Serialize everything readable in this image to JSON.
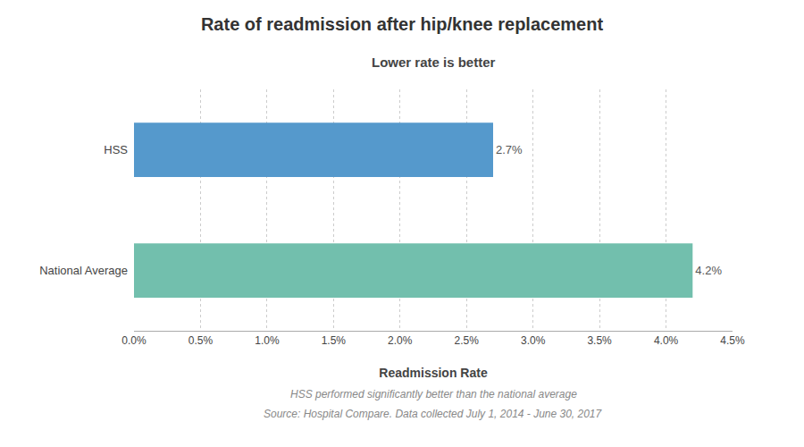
{
  "chart_data": {
    "type": "bar",
    "orientation": "horizontal",
    "title": "Rate of readmission after hip/knee replacement",
    "subtitle": "Lower rate is better",
    "categories": [
      "National Average",
      "HSS"
    ],
    "values": [
      0.042,
      0.027
    ],
    "value_labels": [
      "4.2%",
      "2.7%"
    ],
    "data_labels": true,
    "colors": [
      "#72bfad",
      "#5599cc"
    ],
    "xlabel": "Readmission Rate",
    "xlim": [
      0,
      0.045
    ],
    "xticks": [
      {
        "value": 0.0,
        "label": "0.0%"
      },
      {
        "value": 0.005,
        "label": "0.5%"
      },
      {
        "value": 0.01,
        "label": "1.0%"
      },
      {
        "value": 0.015,
        "label": "1.5%"
      },
      {
        "value": 0.02,
        "label": "2.0%"
      },
      {
        "value": 0.025,
        "label": "2.5%"
      },
      {
        "value": 0.03,
        "label": "3.0%"
      },
      {
        "value": 0.035,
        "label": "3.5%"
      },
      {
        "value": 0.04,
        "label": "4.0%"
      },
      {
        "value": 0.045,
        "label": "4.5%"
      }
    ],
    "grid": true,
    "annotations": [
      "HSS performed significantly better than the national average",
      "Source: Hospital Compare. Data collected July 1, 2014 - June 30, 2017"
    ]
  }
}
